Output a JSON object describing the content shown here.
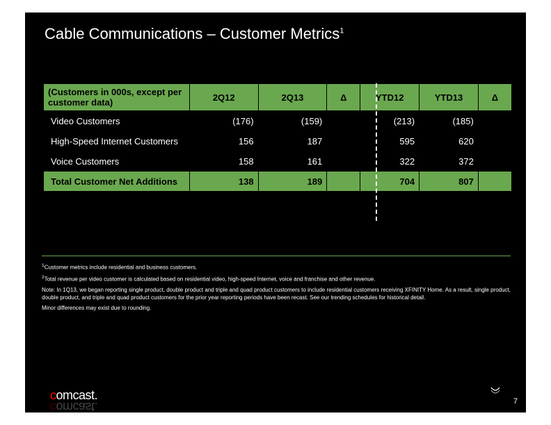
{
  "title_html": "Cable Communications – Customer Metrics<sup>1</sup>",
  "columns": [
    "(Customers in 000s, except per customer data)",
    "2Q12",
    "2Q13",
    "Δ",
    "YTD12",
    "YTD13",
    "Δ"
  ],
  "rows": [
    {
      "label": "Video Customers",
      "q12": "(176)",
      "q13": "(159)",
      "yoy": "",
      "y12": "(213)",
      "y13": "(185)",
      "ytdyoy": ""
    },
    {
      "label": "High-Speed Internet Customers",
      "q12": "156",
      "q13": "187",
      "yoy": "",
      "y12": "595",
      "y13": "620",
      "ytdyoy": ""
    },
    {
      "label": "Voice Customers",
      "q12": "158",
      "q13": "161",
      "yoy": "",
      "y12": "322",
      "y13": "372",
      "ytdyoy": ""
    }
  ],
  "total": {
    "label": "Total Customer Net Additions",
    "q12": "138",
    "q13": "189",
    "yoy": "",
    "y12": "704",
    "y13": "807",
    "ytdyoy": ""
  },
  "footnotes": [
    "<sup>1</sup>Customer metrics include residential and business customers.",
    "<sup>2</sup>Total revenue per video customer is calculated based on residential video, high-speed Internet, voice and franchise and other revenue.",
    "Note: In 1Q13, we began reporting single product, double product and triple and quad product customers to include residential customers receiving XFINITY Home. As a result, single product, double product, and triple and quad product customers for the prior year reporting periods have been recast. See our trending schedules for historical detail.",
    "Minor differences may exist due to rounding."
  ],
  "colors": {
    "header_bg": "#6aa84f",
    "total_bg": "#6aa84f",
    "rule": "#6aa84f",
    "slide_bg": "#000000",
    "text": "#ffffff",
    "logo_accent": "#ff0000"
  },
  "logo_text": {
    "c": "c",
    "rest": "omcast."
  },
  "page_number": "7"
}
